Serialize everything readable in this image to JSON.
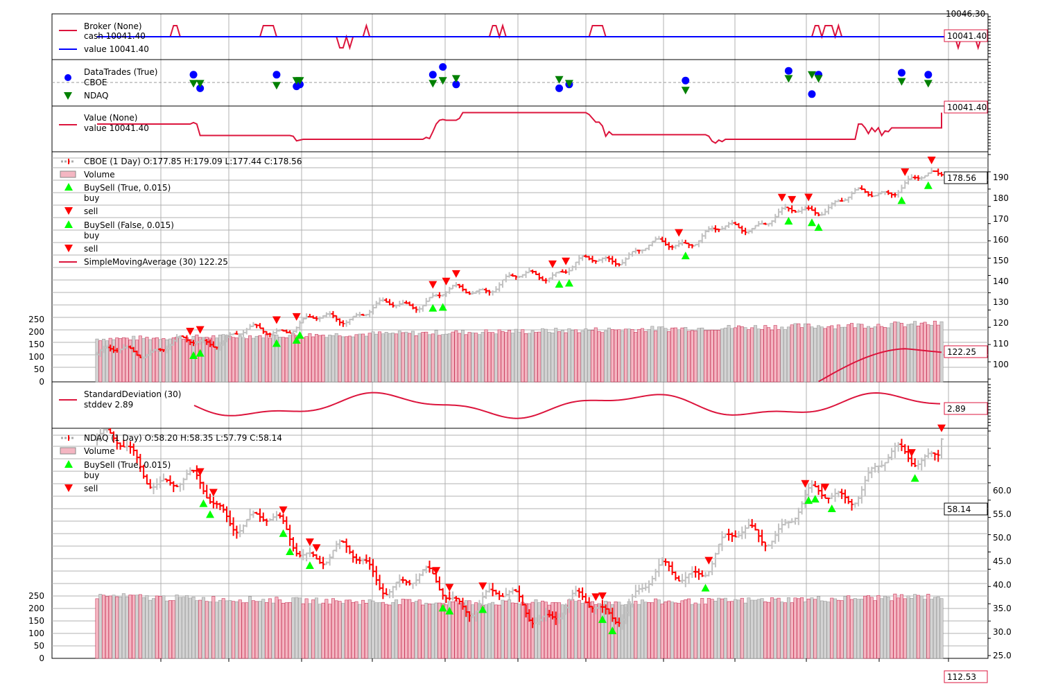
{
  "chart_data": {
    "type": "line",
    "colors": {
      "red": "#dc143c",
      "blue": "#0000ff",
      "green": "#008000",
      "up_bar": "#c0c0c0",
      "down_bar": "#ff0000",
      "buy_marker": "#00ff00",
      "sell_marker": "#ff0000",
      "volume_fill": "#f4b6c2",
      "grid": "#b0b0b0"
    },
    "panels": {
      "broker": {
        "legend": [
          "Broker (None)",
          "cash 10041.40",
          "value 10041.40"
        ],
        "box_value": "10041.40",
        "top_clipped_value": "10046.30",
        "series": [
          {
            "name": "cash",
            "color": "red",
            "values": [
              0,
              0,
              0,
              0,
              0,
              0,
              0,
              0,
              0,
              0,
              0,
              0,
              0,
              0,
              0,
              0,
              0,
              0,
              0,
              0,
              0,
              0,
              0,
              1,
              1,
              0,
              0,
              0,
              0,
              0,
              0,
              0,
              0,
              0,
              0,
              0,
              0,
              0,
              0,
              0,
              0,
              0,
              0,
              0,
              0,
              0,
              0,
              0,
              0,
              0,
              1,
              1,
              1,
              1,
              0,
              0,
              0,
              0,
              0,
              0,
              0,
              0,
              0,
              0,
              0,
              0,
              0,
              0,
              0,
              0,
              0,
              0,
              0,
              -1,
              -1,
              0,
              -1,
              0,
              0,
              0,
              0,
              1,
              0,
              0,
              0,
              0,
              0,
              0,
              0,
              0,
              0,
              0,
              0,
              0,
              0,
              0,
              0,
              0,
              0,
              0,
              0,
              0,
              0,
              0,
              0,
              0,
              0,
              0,
              0,
              0,
              0,
              0,
              0,
              0,
              0,
              0,
              0,
              0,
              0,
              1,
              1,
              0,
              1,
              0,
              0,
              0,
              0,
              0,
              0,
              0,
              0,
              0,
              0,
              0,
              0,
              0,
              0,
              0,
              0,
              0,
              0,
              0,
              0,
              0,
              0,
              0,
              0,
              0,
              0,
              1,
              1,
              1,
              1,
              0,
              0,
              0,
              0,
              0,
              0,
              0,
              0,
              0,
              0,
              0,
              0,
              0,
              0,
              0,
              0,
              0,
              0,
              0,
              0,
              0,
              0,
              0,
              0,
              0,
              0,
              0,
              0,
              0,
              0,
              0,
              0,
              0,
              0,
              0,
              0,
              0,
              0,
              0,
              0,
              0,
              0,
              0,
              0,
              0,
              0,
              0,
              0,
              0,
              0,
              0,
              0,
              0,
              0,
              0,
              0,
              0,
              0,
              0,
              0,
              0,
              0,
              0,
              1,
              1,
              0,
              1,
              1,
              1,
              0,
              1,
              0,
              0,
              0,
              0,
              0,
              0,
              0,
              0,
              0,
              0,
              0,
              0,
              0,
              0,
              0,
              0,
              0,
              0,
              0,
              0,
              0,
              0,
              0,
              0,
              0,
              0,
              0,
              0,
              0,
              0,
              0,
              0,
              0,
              0,
              0,
              -1,
              0,
              0,
              0,
              0,
              0,
              -1,
              0
            ]
          },
          {
            "name": "value",
            "color": "blue",
            "values": [
              0,
              0,
              0,
              0,
              0,
              0,
              0,
              0,
              0,
              0,
              0,
              0,
              0,
              0,
              0,
              0,
              0,
              0,
              0,
              0,
              0,
              0,
              0,
              0,
              0,
              0,
              0,
              0,
              0,
              0,
              0,
              0,
              0,
              0,
              0,
              0,
              0,
              0,
              0,
              0,
              0,
              0,
              0,
              0,
              0,
              0,
              0,
              0,
              0,
              0,
              0,
              0,
              0,
              0,
              0,
              0,
              0,
              0,
              0,
              0,
              0,
              0,
              0,
              0,
              0,
              0,
              0,
              0,
              0,
              0,
              0,
              0,
              0,
              0,
              0,
              0,
              0,
              0,
              0,
              0,
              0,
              0,
              0,
              0,
              0,
              0,
              0,
              0,
              0,
              0,
              0,
              0,
              0,
              0,
              0,
              0,
              0,
              0,
              0,
              0,
              0,
              0,
              0,
              0,
              0,
              0,
              0,
              0,
              0,
              0,
              0,
              0,
              0,
              0,
              0,
              0,
              0,
              0,
              0,
              0,
              0,
              0,
              0,
              0,
              0,
              0,
              0,
              0,
              0,
              0,
              0,
              0,
              0,
              0,
              0,
              0,
              0,
              0,
              0,
              0,
              0,
              0,
              0,
              0,
              0,
              0,
              0,
              0,
              0,
              0,
              0,
              0,
              0,
              0,
              0,
              0,
              0,
              0,
              0,
              0,
              0,
              0,
              0,
              0,
              0,
              0,
              0,
              0,
              0,
              0,
              0,
              0,
              0,
              0,
              0,
              0,
              0,
              0,
              0,
              0,
              0,
              0,
              0,
              0,
              0,
              0,
              0,
              0,
              0,
              0,
              0,
              0,
              0,
              0,
              0,
              0,
              0,
              0,
              0,
              0,
              0,
              0,
              0,
              0,
              0,
              0,
              0,
              0,
              0,
              0,
              0,
              0,
              0,
              0,
              0,
              0,
              0,
              0,
              0,
              0,
              0,
              0,
              0,
              0,
              0,
              0,
              0,
              0,
              0,
              0,
              0,
              0,
              0,
              0,
              0,
              0,
              0,
              0,
              0,
              0,
              0,
              0,
              0,
              0,
              0,
              0,
              0,
              0,
              0,
              0,
              0,
              0,
              0,
              0,
              0,
              0,
              0,
              0
            ]
          }
        ]
      },
      "trades": {
        "legend": [
          "DataTrades (True)",
          "CBOE",
          "NDAQ"
        ],
        "cboe_points": [
          [
            29,
            0.8
          ],
          [
            31,
            -0.6
          ],
          [
            54,
            0.8
          ],
          [
            60,
            -0.4
          ],
          [
            61,
            -0.2
          ],
          [
            101,
            0.8
          ],
          [
            104,
            1.6
          ],
          [
            108,
            -0.2
          ],
          [
            139,
            -0.6
          ],
          [
            142,
            -0.2
          ],
          [
            177,
            0.2
          ],
          [
            208,
            1.2
          ],
          [
            215,
            -1.2
          ],
          [
            217,
            0.8
          ],
          [
            242,
            1.0
          ],
          [
            250,
            0.8
          ]
        ],
        "ndaq_points": [
          [
            29,
            -0.1
          ],
          [
            31,
            -0.1
          ],
          [
            54,
            -0.3
          ],
          [
            60,
            0.2
          ],
          [
            61,
            0.2
          ],
          [
            101,
            -0.1
          ],
          [
            104,
            0.2
          ],
          [
            108,
            0.4
          ],
          [
            139,
            0.3
          ],
          [
            142,
            -0.1
          ],
          [
            177,
            -0.8
          ],
          [
            208,
            0.4
          ],
          [
            215,
            0.8
          ],
          [
            217,
            0.4
          ],
          [
            242,
            0.1
          ],
          [
            250,
            -0.1
          ]
        ]
      },
      "value": {
        "legend": [
          "Value (None)",
          "value 10041.40"
        ],
        "box_value": "10041.40",
        "values": [
          2,
          2,
          2,
          2,
          2,
          2,
          2,
          2,
          2,
          2,
          2,
          2,
          2,
          2,
          2,
          2,
          2,
          2,
          2,
          2,
          2,
          2,
          2,
          2,
          2,
          2,
          2,
          2,
          2,
          2.4,
          2,
          -1,
          -1,
          -1,
          -1,
          -1,
          -1,
          -1,
          -1,
          -1,
          -1,
          -1,
          -1,
          -1,
          -1,
          -1,
          -1,
          -1,
          -1,
          -1,
          -1,
          -1,
          -1,
          -1,
          -1,
          -1,
          -1,
          -1,
          -1,
          -1.2,
          -2.4,
          -2.2,
          -2,
          -2,
          -2,
          -2,
          -2,
          -2,
          -2,
          -2,
          -2,
          -2,
          -2,
          -2,
          -2,
          -2,
          -2,
          -2,
          -2,
          -2,
          -2,
          -2,
          -2,
          -2,
          -2,
          -2,
          -2,
          -2,
          -2,
          -2,
          -2,
          -2,
          -2,
          -2,
          -2,
          -2,
          -2,
          -2,
          -2,
          -1.5,
          -1.8,
          0,
          2,
          3,
          3.2,
          3,
          3,
          3,
          3,
          3.5,
          5,
          5,
          5,
          5,
          5,
          5,
          5,
          5,
          5,
          5,
          5,
          5,
          5,
          5,
          5,
          5,
          5,
          5,
          5,
          5,
          5,
          5,
          5,
          5,
          5,
          5,
          5,
          5,
          5,
          5,
          5,
          5,
          5,
          5,
          5,
          5,
          5,
          5,
          4.5,
          3.5,
          2.5,
          2.5,
          1.5,
          -1.2,
          0,
          -0.8,
          -0.8,
          -0.8,
          -0.8,
          -0.8,
          -0.8,
          -0.8,
          -0.8,
          -0.8,
          -0.8,
          -0.8,
          -0.8,
          -0.8,
          -0.8,
          -0.8,
          -0.8,
          -0.8,
          -0.8,
          -0.8,
          -0.8,
          -0.8,
          -0.8,
          -0.8,
          -0.8,
          -0.8,
          -0.8,
          -0.8,
          -0.8,
          -0.8,
          -1.2,
          -2.5,
          -3,
          -2.2,
          -2.6,
          -2,
          -2,
          -2,
          -2,
          -2,
          -2,
          -2,
          -2,
          -2,
          -2,
          -2,
          -2,
          -2,
          -2,
          -2,
          -2,
          -2,
          -2,
          -2,
          -2,
          -2,
          -2,
          -2,
          -2,
          -2,
          -2,
          -2,
          -2,
          -2,
          -2,
          -2,
          -2,
          -2,
          -2,
          -2,
          -2,
          -2,
          -2,
          -2,
          -2,
          2,
          2,
          1,
          -0.5,
          1,
          0,
          1,
          -1,
          0.2,
          0,
          1,
          1,
          1,
          1,
          1,
          1,
          1,
          1,
          1,
          1,
          1,
          1,
          1,
          1,
          1,
          1,
          1,
          1,
          1,
          1,
          1,
          1,
          1,
          1,
          1,
          1,
          1,
          1,
          2.5,
          4,
          4,
          4,
          4,
          4,
          4,
          5,
          5
        ]
      },
      "cboe": {
        "legend": [
          "CBOE (1 Day) O:177.85 H:179.09 L:177.44 C:178.56",
          "Volume",
          "BuySell (True, 0.015)",
          "buy",
          "sell",
          "BuySell (False, 0.015)",
          "buy",
          "sell",
          "SimpleMovingAverage (30) 122.25"
        ],
        "close_box": "178.56",
        "sma_box": "122.25",
        "close_start": 100,
        "close_end": 178.56,
        "sma_end": 122.25,
        "left_ticks": [
          "0",
          "50",
          "100",
          "150",
          "200",
          "250"
        ],
        "right_ticks": [
          "100",
          "110",
          "120",
          "130",
          "140",
          "150",
          "160",
          "170",
          "180",
          "190"
        ]
      },
      "stddev": {
        "legend": [
          "StandardDeviation (30)",
          "stddev 2.89"
        ],
        "box_value": "2.89"
      },
      "ndaq": {
        "legend": [
          "NDAQ (1 Day) O:58.20 H:58.35 L:57.79 C:58.14",
          "Volume",
          "BuySell (True, 0.015)",
          "buy",
          "sell"
        ],
        "close_box": "58.14",
        "bottom_box": "112.53",
        "left_ticks": [
          "0",
          "50",
          "100",
          "150",
          "200",
          "250"
        ],
        "right_ticks": [
          "25.0",
          "30.0",
          "35.0",
          "40.0",
          "45.0",
          "50.0",
          "55.0",
          "60.0"
        ]
      }
    }
  }
}
